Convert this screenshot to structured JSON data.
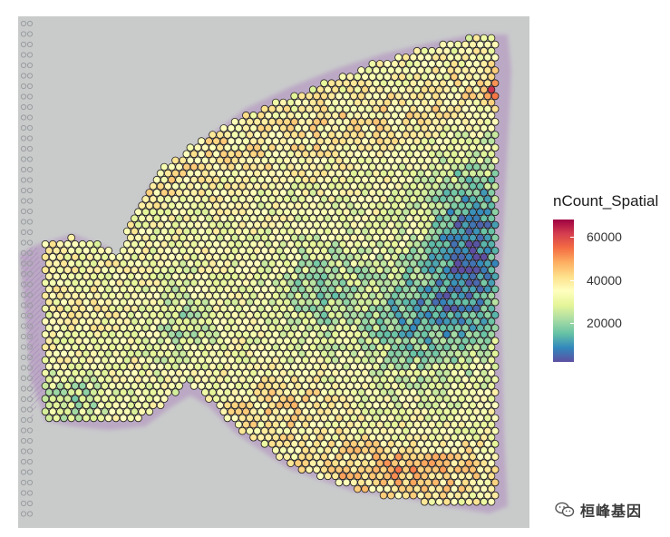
{
  "chart_data": {
    "type": "scatter",
    "subtype": "spatial-spot-plot",
    "title": "",
    "xlabel": "",
    "ylabel": "",
    "color_variable": "nCount_Spatial",
    "color_scale": {
      "palette": "Spectral",
      "colors": [
        "#5e4fa2",
        "#3288bd",
        "#66c2a5",
        "#abdda4",
        "#e6f598",
        "#ffffbf",
        "#fee08b",
        "#fdae61",
        "#f46d43",
        "#d53e4f",
        "#9e0142"
      ],
      "min": 2000,
      "max": 68000
    },
    "legend": {
      "title": "nCount_Spatial",
      "ticks": [
        {
          "value": 60000,
          "label": "60000"
        },
        {
          "value": 40000,
          "label": "40000"
        },
        {
          "value": 20000,
          "label": "20000"
        }
      ],
      "position": "right"
    },
    "background": "H&E tissue image",
    "grid": false
  },
  "watermark": {
    "icon": "wechat-icon",
    "text": "桓峰基因"
  }
}
